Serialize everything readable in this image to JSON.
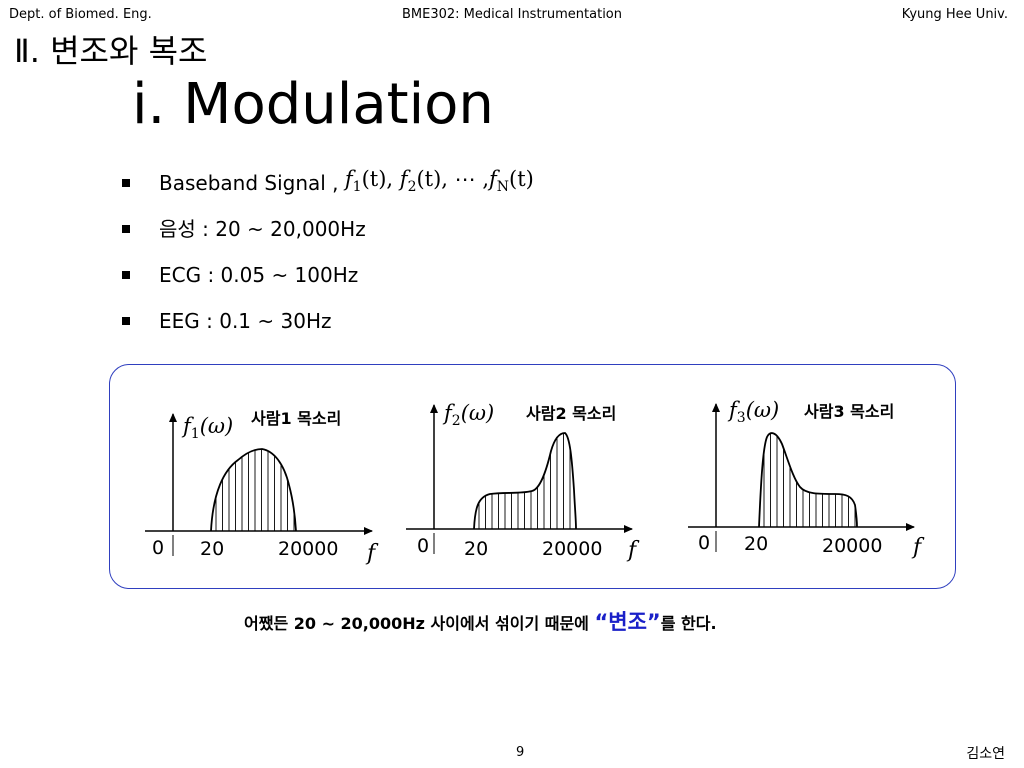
{
  "header": {
    "left": "Dept. of Biomed. Eng.",
    "center": "BME302: Medical Instrumentation",
    "right": "Kyung Hee Univ."
  },
  "section_title": "Ⅱ. 변조와 복조",
  "slide_title": "ⅰ. Modulation",
  "bullets": [
    {
      "label": "Baseband Signal ,",
      "math": [
        "f",
        "1",
        "(t), ",
        "f",
        "2",
        "(t), ⋯ ,",
        "f",
        "N",
        "(t)"
      ]
    },
    {
      "label": "음성 : 20 ~ 20,000Hz"
    },
    {
      "label": "ECG : 0.05 ~ 100Hz"
    },
    {
      "label": "EEG : 0.1 ~ 30Hz"
    }
  ],
  "plots": [
    {
      "func_base": "f",
      "func_sub": "1",
      "func_arg": "(ω)",
      "label": "사람1 목소리",
      "origin": "0",
      "tick_low": "20",
      "tick_high": "20000",
      "axis_var": "f"
    },
    {
      "func_base": "f",
      "func_sub": "2",
      "func_arg": "(ω)",
      "label": "사람2 목소리",
      "origin": "0",
      "tick_low": "20",
      "tick_high": "20000",
      "axis_var": "f"
    },
    {
      "func_base": "f",
      "func_sub": "3",
      "func_arg": "(ω)",
      "label": "사람3 목소리",
      "origin": "0",
      "tick_low": "20",
      "tick_high": "20000",
      "axis_var": "f"
    }
  ],
  "caption": {
    "pre": "어쨌든 20 ~ 20,000Hz 사이에서 섞이기 때문에 ",
    "emph": "“변조”",
    "post": "를 한다."
  },
  "footer": {
    "page": "9",
    "author": "김소연"
  },
  "colors": {
    "box_border": "#2f3fbf",
    "emphasis": "#1a20c8"
  }
}
